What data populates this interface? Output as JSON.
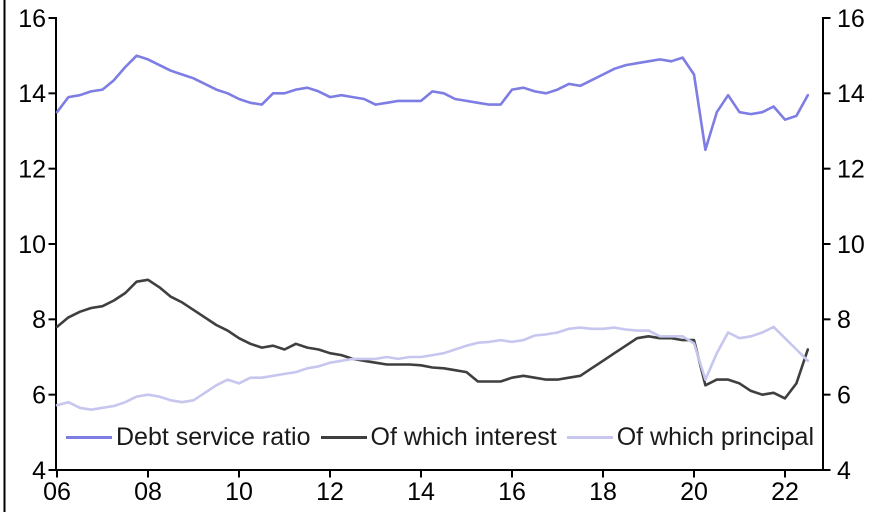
{
  "chart_data": {
    "type": "line",
    "title": "",
    "x_unit": "year, quarterly observations",
    "x_start": 2006.0,
    "x_step": 0.25,
    "xlim": [
      2006,
      2022.85
    ],
    "ylim": [
      4,
      16
    ],
    "y_ticks": [
      16,
      14,
      12,
      10,
      8,
      6,
      4
    ],
    "y_tick_labels": [
      "16",
      "14",
      "12",
      "10",
      "8",
      "6",
      "4"
    ],
    "x_ticks": [
      2006,
      2008,
      2010,
      2012,
      2014,
      2016,
      2018,
      2020,
      2022
    ],
    "x_tick_labels": [
      "06",
      "08",
      "10",
      "12",
      "14",
      "16",
      "18",
      "20",
      "22"
    ],
    "grid": false,
    "legend_position": "bottom-inside",
    "axes": {
      "left": true,
      "right": true,
      "top": false,
      "bottom": true
    },
    "axis_color": "#000000",
    "series": [
      {
        "name": "Debt service ratio",
        "color": "#7d7de4",
        "values": [
          13.5,
          13.9,
          13.95,
          14.05,
          14.1,
          14.35,
          14.7,
          15.0,
          14.9,
          14.75,
          14.6,
          14.5,
          14.4,
          14.25,
          14.1,
          14.0,
          13.85,
          13.75,
          13.7,
          14.0,
          14.0,
          14.1,
          14.15,
          14.05,
          13.9,
          13.95,
          13.9,
          13.85,
          13.7,
          13.75,
          13.8,
          13.8,
          13.8,
          14.05,
          14.0,
          13.85,
          13.8,
          13.75,
          13.7,
          13.7,
          14.1,
          14.15,
          14.05,
          14.0,
          14.1,
          14.25,
          14.2,
          14.35,
          14.5,
          14.65,
          14.75,
          14.8,
          14.85,
          14.9,
          14.85,
          14.95,
          14.5,
          12.5,
          13.5,
          13.95,
          13.5,
          13.45,
          13.5,
          13.65,
          13.3,
          13.4,
          13.95
        ]
      },
      {
        "name": "Of which interest",
        "color": "#3f3f3f",
        "values": [
          7.8,
          8.05,
          8.2,
          8.3,
          8.35,
          8.5,
          8.7,
          9.0,
          9.05,
          8.85,
          8.6,
          8.45,
          8.25,
          8.05,
          7.85,
          7.7,
          7.5,
          7.35,
          7.25,
          7.3,
          7.2,
          7.35,
          7.25,
          7.2,
          7.1,
          7.05,
          6.95,
          6.9,
          6.85,
          6.8,
          6.8,
          6.8,
          6.78,
          6.72,
          6.7,
          6.65,
          6.6,
          6.35,
          6.35,
          6.35,
          6.45,
          6.5,
          6.45,
          6.4,
          6.4,
          6.45,
          6.5,
          6.7,
          6.9,
          7.1,
          7.3,
          7.5,
          7.55,
          7.5,
          7.5,
          7.45,
          7.45,
          6.25,
          6.4,
          6.4,
          6.3,
          6.1,
          6.0,
          6.05,
          5.9,
          6.3,
          7.2
        ]
      },
      {
        "name": "Of which principal",
        "color": "#c6c6ef",
        "values": [
          5.72,
          5.8,
          5.65,
          5.6,
          5.65,
          5.7,
          5.8,
          5.95,
          6.0,
          5.95,
          5.85,
          5.8,
          5.85,
          6.05,
          6.25,
          6.4,
          6.3,
          6.45,
          6.45,
          6.5,
          6.55,
          6.6,
          6.7,
          6.75,
          6.85,
          6.9,
          6.95,
          6.95,
          6.95,
          7.0,
          6.95,
          7.0,
          7.0,
          7.05,
          7.1,
          7.2,
          7.3,
          7.38,
          7.4,
          7.45,
          7.4,
          7.45,
          7.57,
          7.6,
          7.65,
          7.75,
          7.78,
          7.75,
          7.75,
          7.78,
          7.73,
          7.7,
          7.7,
          7.55,
          7.55,
          7.55,
          7.36,
          6.4,
          7.1,
          7.65,
          7.5,
          7.55,
          7.65,
          7.8,
          7.5,
          7.2,
          6.9
        ]
      }
    ]
  },
  "frame": {
    "left_border_color": "#000000"
  }
}
